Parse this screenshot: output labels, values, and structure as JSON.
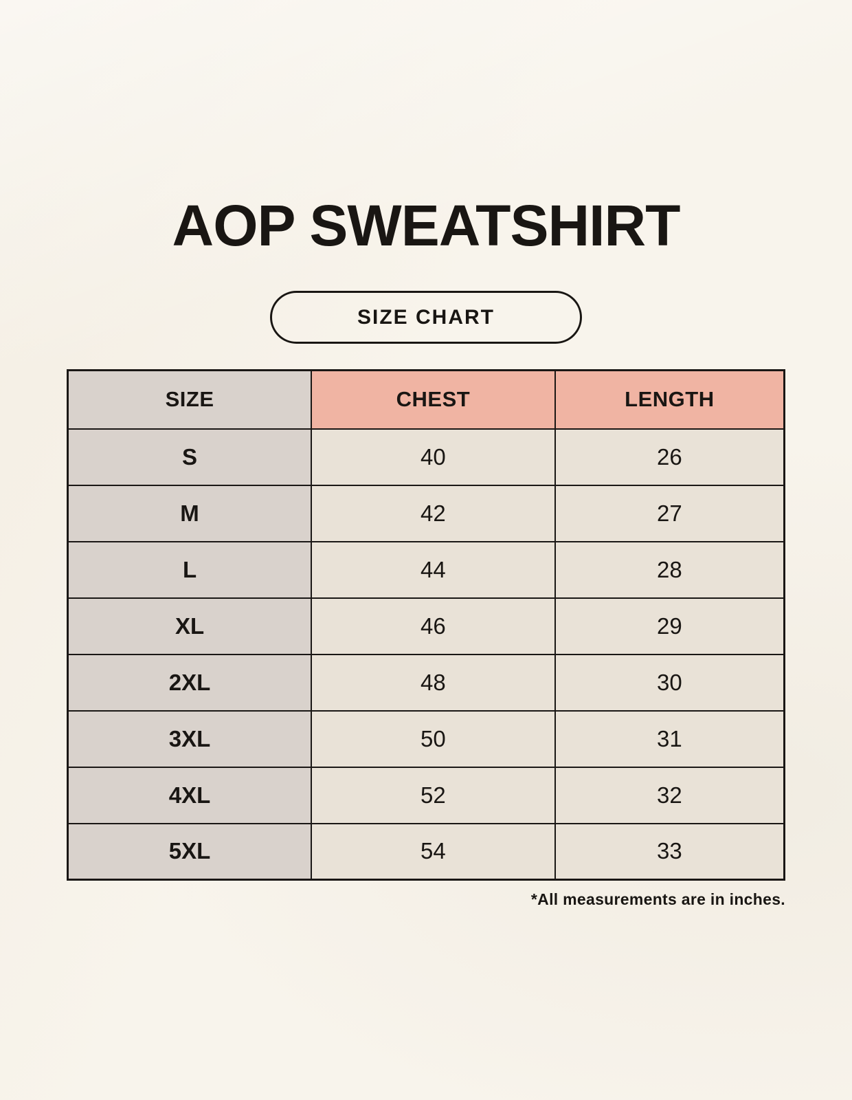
{
  "header": {
    "title": "AOP SWEATSHIRT",
    "badge_label": "SIZE CHART"
  },
  "chart_data": {
    "type": "table",
    "title": "AOP SWEATSHIRT",
    "subtitle": "SIZE CHART",
    "columns": [
      "SIZE",
      "CHEST",
      "LENGTH"
    ],
    "rows": [
      [
        "S",
        40,
        26
      ],
      [
        "M",
        42,
        27
      ],
      [
        "L",
        44,
        28
      ],
      [
        "XL",
        46,
        29
      ],
      [
        "2XL",
        48,
        30
      ],
      [
        "3XL",
        50,
        31
      ],
      [
        "4XL",
        52,
        32
      ],
      [
        "5XL",
        54,
        33
      ]
    ],
    "units": "inches",
    "note": "*All measurements are in inches."
  },
  "footer": {
    "note": "*All measurements are in inches."
  },
  "colors": {
    "page_background": "#F8F4EC",
    "header_accent_pink": "#F0B4A3",
    "size_column_gray": "#D9D2CC",
    "cell_cream": "#E9E2D7",
    "border_black": "#1A1715",
    "text_black": "#191613"
  }
}
